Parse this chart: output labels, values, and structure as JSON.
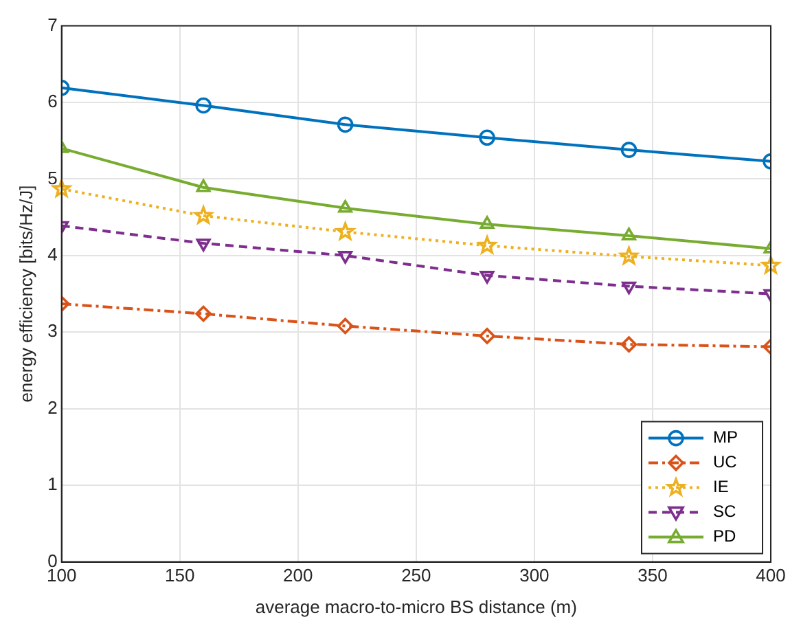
{
  "chart_data": {
    "type": "line",
    "xlabel": "average macro-to-micro BS distance (m)",
    "ylabel": "energy efficiency [bits/Hz/J]",
    "x": [
      100,
      160,
      220,
      280,
      340,
      400
    ],
    "xlim": [
      100,
      400
    ],
    "xticks": [
      100,
      150,
      200,
      250,
      300,
      350,
      400
    ],
    "ylim": [
      0,
      7
    ],
    "yticks": [
      0,
      1,
      2,
      3,
      4,
      5,
      6,
      7
    ],
    "grid": true,
    "legend": "bottom right",
    "series": [
      {
        "name": "MP",
        "color": "#0072bd",
        "marker": "circle",
        "line_style": "solid",
        "values": [
          6.19,
          5.96,
          5.71,
          5.54,
          5.38,
          5.23
        ]
      },
      {
        "name": "UC",
        "color": "#d95319",
        "marker": "diamond",
        "line_style": "dashdot",
        "values": [
          3.37,
          3.24,
          3.08,
          2.95,
          2.84,
          2.81
        ]
      },
      {
        "name": "IE",
        "color": "#edb120",
        "marker": "star",
        "line_style": "dotted",
        "values": [
          4.87,
          4.52,
          4.31,
          4.13,
          3.99,
          3.87
        ]
      },
      {
        "name": "SC",
        "color": "#7e2f8e",
        "marker": "triangle-down",
        "line_style": "dashed",
        "values": [
          4.39,
          4.16,
          4.0,
          3.74,
          3.6,
          3.5
        ]
      },
      {
        "name": "PD",
        "color": "#77ac30",
        "marker": "triangle",
        "line_style": "solid",
        "values": [
          5.4,
          4.89,
          4.62,
          4.41,
          4.26,
          4.09
        ]
      }
    ]
  }
}
